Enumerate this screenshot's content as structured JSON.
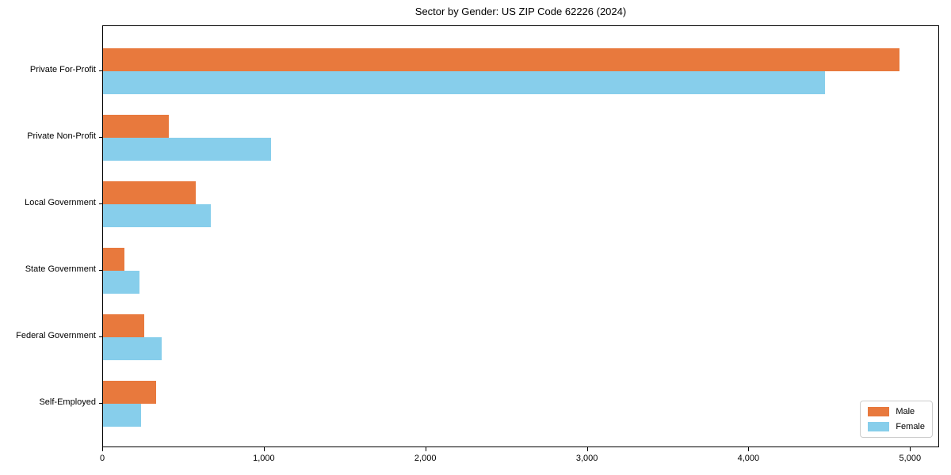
{
  "chart_data": {
    "type": "bar",
    "orientation": "horizontal",
    "title": "Sector by Gender: US ZIP Code 62226 (2024)",
    "categories": [
      "Private For-Profit",
      "Private Non-Profit",
      "Local Government",
      "State Government",
      "Federal Government",
      "Self-Employed"
    ],
    "series": [
      {
        "name": "Male",
        "color": "#e8793d",
        "values": [
          4930,
          405,
          575,
          130,
          255,
          330
        ]
      },
      {
        "name": "Female",
        "color": "#87ceeb",
        "values": [
          4470,
          1040,
          665,
          225,
          365,
          235
        ]
      }
    ],
    "xlabel": "",
    "ylabel": "",
    "xlim": [
      0,
      5180
    ],
    "x_ticks": [
      0,
      1000,
      2000,
      3000,
      4000,
      5000
    ],
    "x_tick_labels": [
      "0",
      "1,000",
      "2,000",
      "3,000",
      "4,000",
      "5,000"
    ],
    "grid": false,
    "legend_position": "lower right",
    "colors": {
      "male": "#e8793d",
      "female": "#87ceeb",
      "spine": "#000000",
      "background": "#ffffff"
    }
  }
}
